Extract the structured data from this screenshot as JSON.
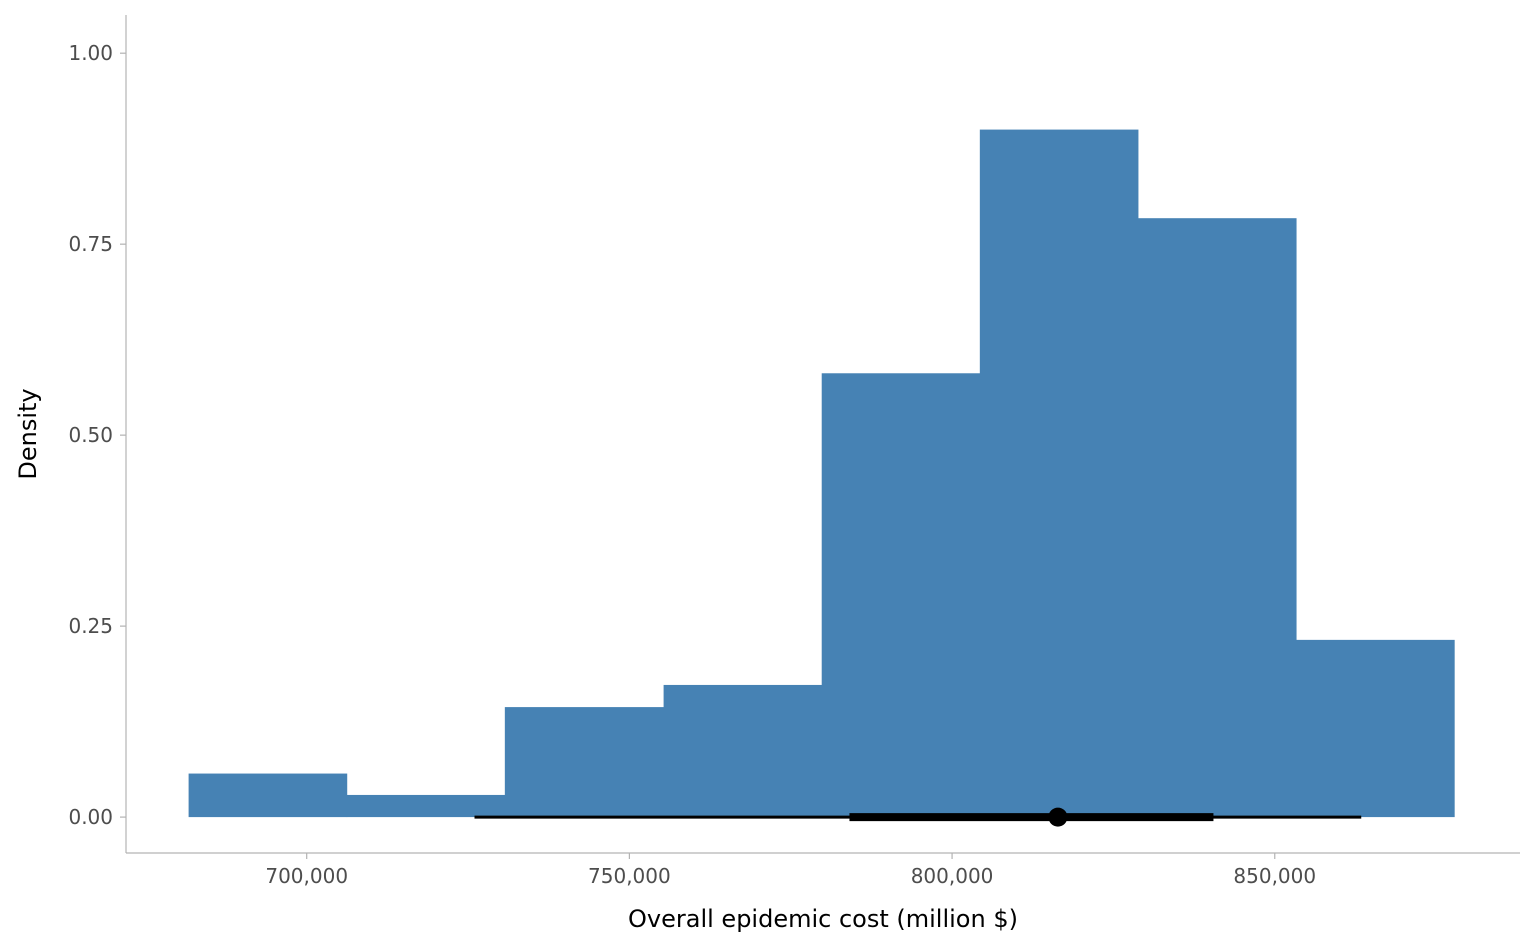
{
  "chart_data": {
    "type": "bar",
    "subtype": "histogram",
    "title": "",
    "xlabel": "Overall epidemic cost (million $)",
    "ylabel": "Density",
    "xlim": [
      672000,
      888000
    ],
    "ylim": [
      -0.047,
      1.05
    ],
    "x_ticks": [
      {
        "value": 700000,
        "label": "700,000"
      },
      {
        "value": 750000,
        "label": "750,000"
      },
      {
        "value": 800000,
        "label": "800,000"
      },
      {
        "value": 850000,
        "label": "850,000"
      }
    ],
    "y_ticks": [
      {
        "value": 0.0,
        "label": "0.00"
      },
      {
        "value": 0.25,
        "label": "0.25"
      },
      {
        "value": 0.5,
        "label": "0.50"
      },
      {
        "value": 0.75,
        "label": "0.75"
      },
      {
        "value": 1.0,
        "label": "1.00"
      }
    ],
    "bins": [
      {
        "x0": 681700,
        "x1": 706200,
        "density": 0.057
      },
      {
        "x0": 706200,
        "x1": 730700,
        "density": 0.029
      },
      {
        "x0": 730700,
        "x1": 755300,
        "density": 0.144
      },
      {
        "x0": 755300,
        "x1": 779800,
        "density": 0.173
      },
      {
        "x0": 779800,
        "x1": 804300,
        "density": 0.581
      },
      {
        "x0": 804300,
        "x1": 828800,
        "density": 0.9
      },
      {
        "x0": 828800,
        "x1": 853300,
        "density": 0.784
      },
      {
        "x0": 853300,
        "x1": 877800,
        "density": 0.232
      }
    ],
    "interval": {
      "point": 816400,
      "outer": [
        726000,
        863400
      ],
      "inner": [
        784100,
        840500
      ],
      "y": 0.0
    },
    "grid": false,
    "colors": {
      "fill": "#4682b4",
      "interval": "#000000"
    }
  }
}
